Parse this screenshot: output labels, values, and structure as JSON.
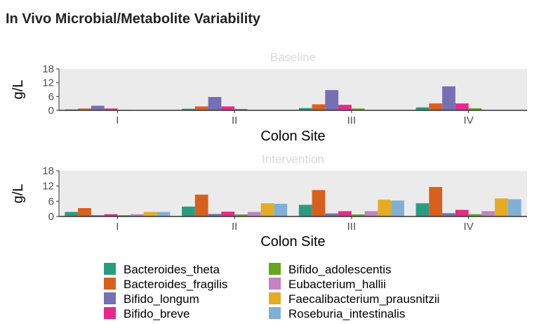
{
  "chart_data": {
    "type": "bar",
    "title": "In Vivo Microbial/Metabolite Variability",
    "categories": [
      "I",
      "II",
      "III",
      "IV"
    ],
    "xlabel": "Colon Site",
    "ylabel": "g/L",
    "ylim": [
      0,
      18
    ],
    "yticks": [
      "0",
      "6",
      "12",
      "18"
    ],
    "grid": false,
    "legend_position": "bottom",
    "colors": {
      "Bacteroides_theta": "#2a9d80",
      "Bacteroides_fragilis": "#d95f1c",
      "Bifido_longum": "#7570b3",
      "Bifido_breve": "#e7298a",
      "Bifido_adolescentis": "#66a61e",
      "Eubacterium_hallii": "#c183c4",
      "Faecalibacterium_prausnitzii": "#e6ab25",
      "Roseburia_intestinalis": "#7fb0d8"
    },
    "panels": [
      {
        "strip": "Baseline",
        "series": [
          {
            "name": "Bacteroides_theta",
            "values": [
              0.4,
              0.7,
              1.0,
              1.3
            ]
          },
          {
            "name": "Bacteroides_fragilis",
            "values": [
              0.8,
              1.7,
              2.6,
              3.0
            ]
          },
          {
            "name": "Bifido_longum",
            "values": [
              2.0,
              5.8,
              8.8,
              10.4
            ]
          },
          {
            "name": "Bifido_breve",
            "values": [
              0.8,
              1.7,
              2.4,
              3.0
            ]
          },
          {
            "name": "Bifido_adolescentis",
            "values": [
              0.2,
              0.6,
              0.8,
              0.9
            ]
          },
          {
            "name": "Eubacterium_hallii",
            "values": [
              0.05,
              0.1,
              0.1,
              0.1
            ]
          },
          {
            "name": "Faecalibacterium_prausnitzii",
            "values": [
              0.0,
              0.0,
              0.0,
              0.0
            ]
          },
          {
            "name": "Roseburia_intestinalis",
            "values": [
              0.0,
              0.0,
              0.0,
              0.0
            ]
          }
        ]
      },
      {
        "strip": "Intervention",
        "series": [
          {
            "name": "Bacteroides_theta",
            "values": [
              1.8,
              3.9,
              4.6,
              5.2
            ]
          },
          {
            "name": "Bacteroides_fragilis",
            "values": [
              3.3,
              8.6,
              10.4,
              11.6
            ]
          },
          {
            "name": "Bifido_longum",
            "values": [
              0.5,
              1.0,
              1.2,
              1.3
            ]
          },
          {
            "name": "Bifido_breve",
            "values": [
              0.9,
              1.9,
              2.1,
              2.6
            ]
          },
          {
            "name": "Bifido_adolescentis",
            "values": [
              0.5,
              0.8,
              0.8,
              0.9
            ]
          },
          {
            "name": "Eubacterium_hallii",
            "values": [
              0.9,
              1.8,
              2.1,
              2.1
            ]
          },
          {
            "name": "Faecalibacterium_prausnitzii",
            "values": [
              1.8,
              5.2,
              6.6,
              7.1
            ]
          },
          {
            "name": "Roseburia_intestinalis",
            "values": [
              1.8,
              5.0,
              6.3,
              6.8
            ]
          }
        ]
      }
    ]
  }
}
